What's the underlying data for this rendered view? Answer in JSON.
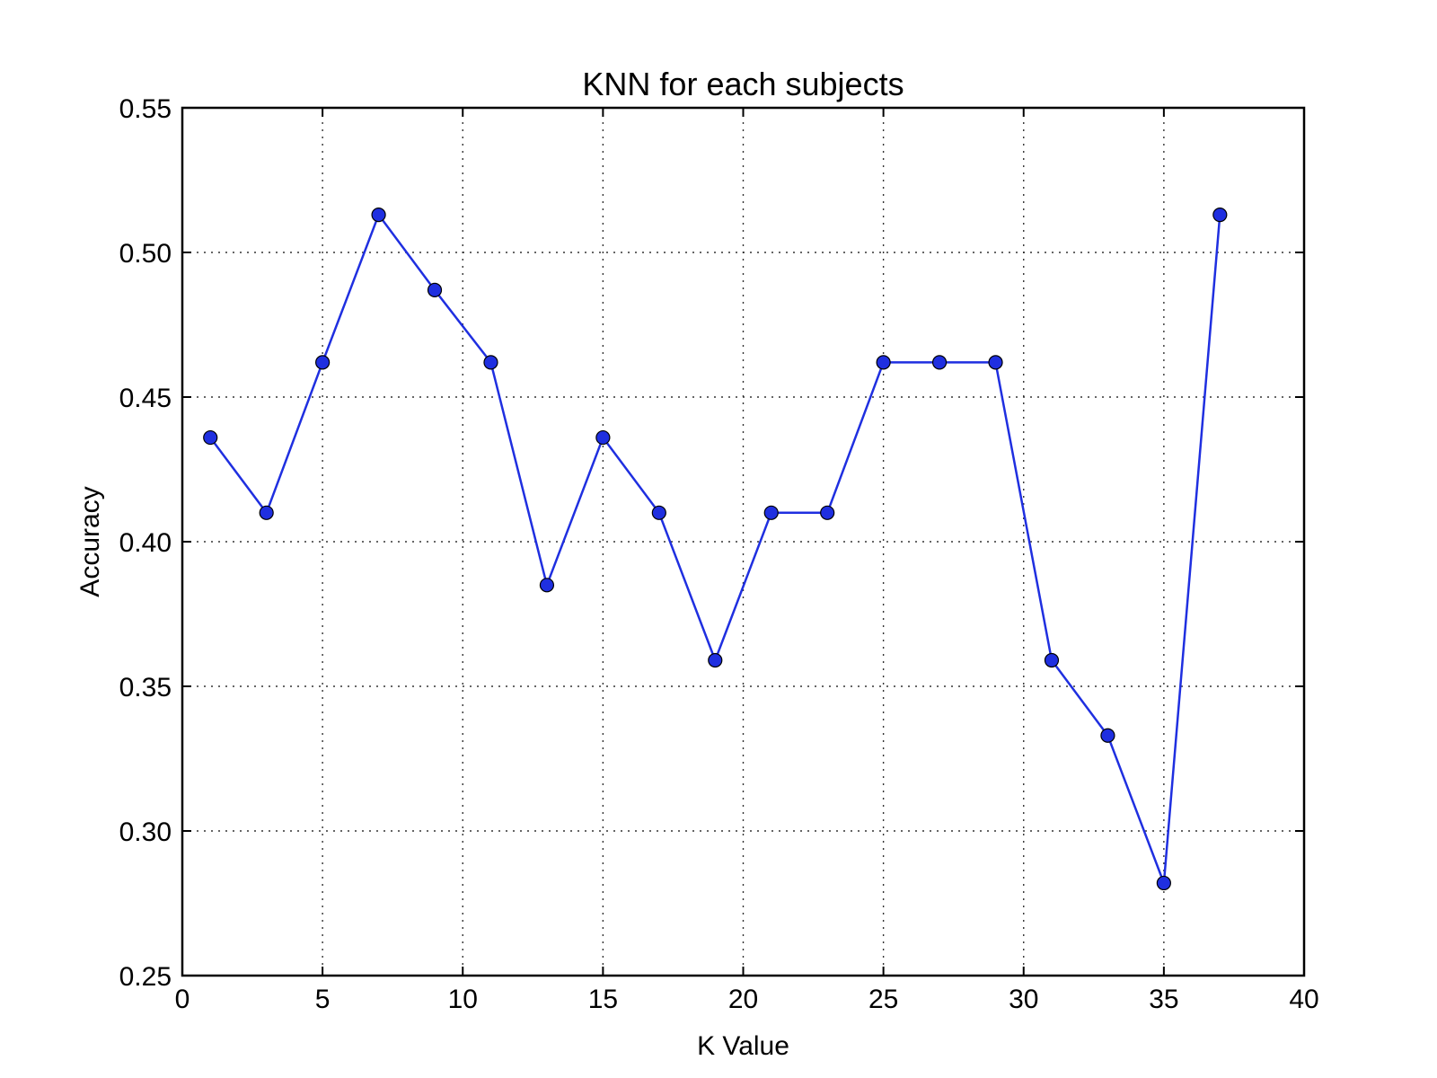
{
  "chart_data": {
    "type": "line",
    "title": "KNN for each subjects",
    "xlabel": "K Value",
    "ylabel": "Accuracy",
    "xlim": [
      0,
      40
    ],
    "ylim": [
      0.25,
      0.55
    ],
    "xticks": [
      0,
      5,
      10,
      15,
      20,
      25,
      30,
      35,
      40
    ],
    "yticks": [
      0.25,
      0.3,
      0.35,
      0.4,
      0.45,
      0.5,
      0.55
    ],
    "xtick_labels": [
      "0",
      "5",
      "10",
      "15",
      "20",
      "25",
      "30",
      "35",
      "40"
    ],
    "ytick_labels": [
      "0.25",
      "0.30",
      "0.35",
      "0.40",
      "0.45",
      "0.50",
      "0.55"
    ],
    "grid": true,
    "series": [
      {
        "color": "#1f2fe0",
        "marker": "circle",
        "x": [
          1,
          3,
          5,
          7,
          9,
          11,
          13,
          15,
          17,
          19,
          21,
          23,
          25,
          27,
          29,
          31,
          33,
          35,
          37
        ],
        "y": [
          0.436,
          0.41,
          0.462,
          0.513,
          0.487,
          0.462,
          0.385,
          0.436,
          0.41,
          0.359,
          0.41,
          0.41,
          0.462,
          0.462,
          0.462,
          0.359,
          0.333,
          0.282,
          0.513
        ]
      }
    ]
  }
}
